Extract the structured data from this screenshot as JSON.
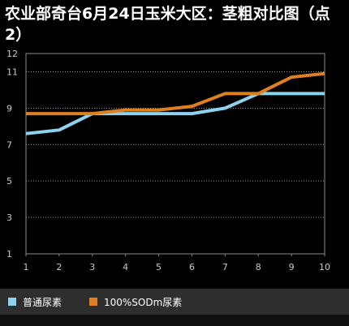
{
  "title": "农业部奇台6月24日玉米大区：茎粗对比图（点2）",
  "chart_data": {
    "type": "line",
    "title": "农业部奇台6月24日玉米大区：茎粗对比图（点2）",
    "xlabel": "",
    "ylabel": "",
    "x": [
      1,
      2,
      3,
      4,
      5,
      6,
      7,
      8,
      9,
      10
    ],
    "ylim": [
      1,
      12
    ],
    "yticks": [
      1,
      3,
      5,
      7,
      9,
      11,
      12
    ],
    "grid": true,
    "legend_position": "bottom",
    "series": [
      {
        "name": "普通尿素",
        "color": "#8ed3ee",
        "values": [
          7.6,
          7.8,
          8.7,
          8.7,
          8.7,
          8.7,
          9.0,
          9.8,
          9.8,
          9.8
        ]
      },
      {
        "name": "100%SODm尿素",
        "color": "#e07f1f",
        "values": [
          8.7,
          8.7,
          8.7,
          8.9,
          8.9,
          9.1,
          9.8,
          9.8,
          10.7,
          10.9
        ]
      }
    ]
  }
}
